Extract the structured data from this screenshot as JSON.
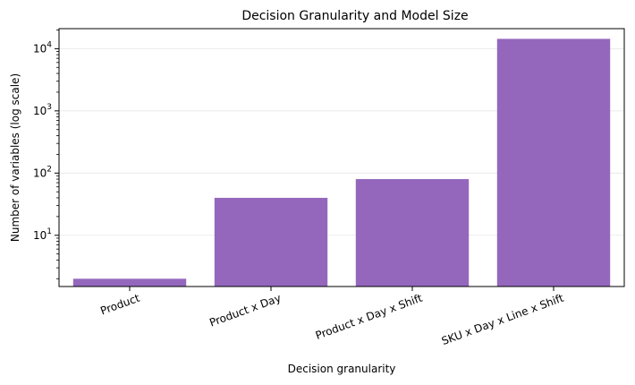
{
  "chart_data": {
    "type": "bar",
    "title": "Decision Granularity and Model Size",
    "xlabel": "Decision granularity",
    "ylabel": "Number of variables (log scale)",
    "yscale": "log",
    "ylim": [
      1.5,
      21000
    ],
    "grid": "y",
    "legend": "none",
    "categories": [
      "Product",
      "Product x Day",
      "Product x Day x Shift",
      "SKU x Day x Line x Shift"
    ],
    "values": [
      2,
      40,
      80,
      14400
    ],
    "bar_color": "#9467bd",
    "y_tick_values": [
      10,
      100,
      1000,
      10000
    ],
    "y_tick_labels": [
      {
        "base": "10",
        "exp": "1"
      },
      {
        "base": "10",
        "exp": "2"
      },
      {
        "base": "10",
        "exp": "3"
      },
      {
        "base": "10",
        "exp": "4"
      }
    ]
  }
}
